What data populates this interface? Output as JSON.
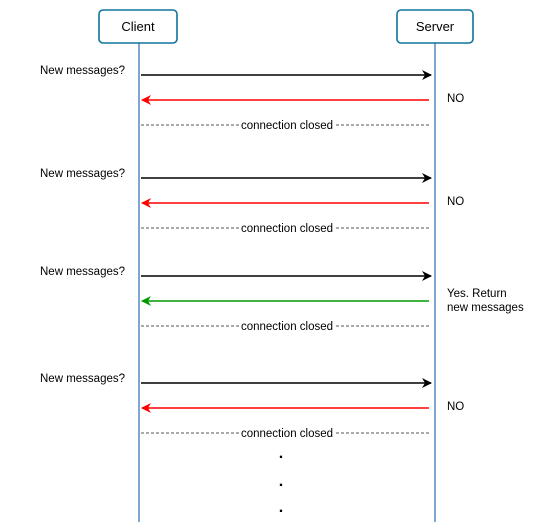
{
  "actors": {
    "client": "Client",
    "server": "Server"
  },
  "colors": {
    "request": "#000000",
    "response_empty": "#ff0000",
    "response_data": "#009900",
    "actor_border": "#10739e",
    "lifeline": "#2a6fb0"
  },
  "rounds": [
    {
      "request": "New messages?",
      "response": [
        "NO"
      ],
      "response_type": "empty",
      "closed": "connection closed"
    },
    {
      "request": "New messages?",
      "response": [
        "NO"
      ],
      "response_type": "empty",
      "closed": "connection closed"
    },
    {
      "request": "New messages?",
      "response": [
        "Yes. Return",
        "new messages"
      ],
      "response_type": "data",
      "closed": "connection closed"
    },
    {
      "request": "New messages?",
      "response": [
        "NO"
      ],
      "response_type": "empty",
      "closed": "connection closed"
    }
  ],
  "continuation": [
    ".",
    ".",
    "."
  ]
}
